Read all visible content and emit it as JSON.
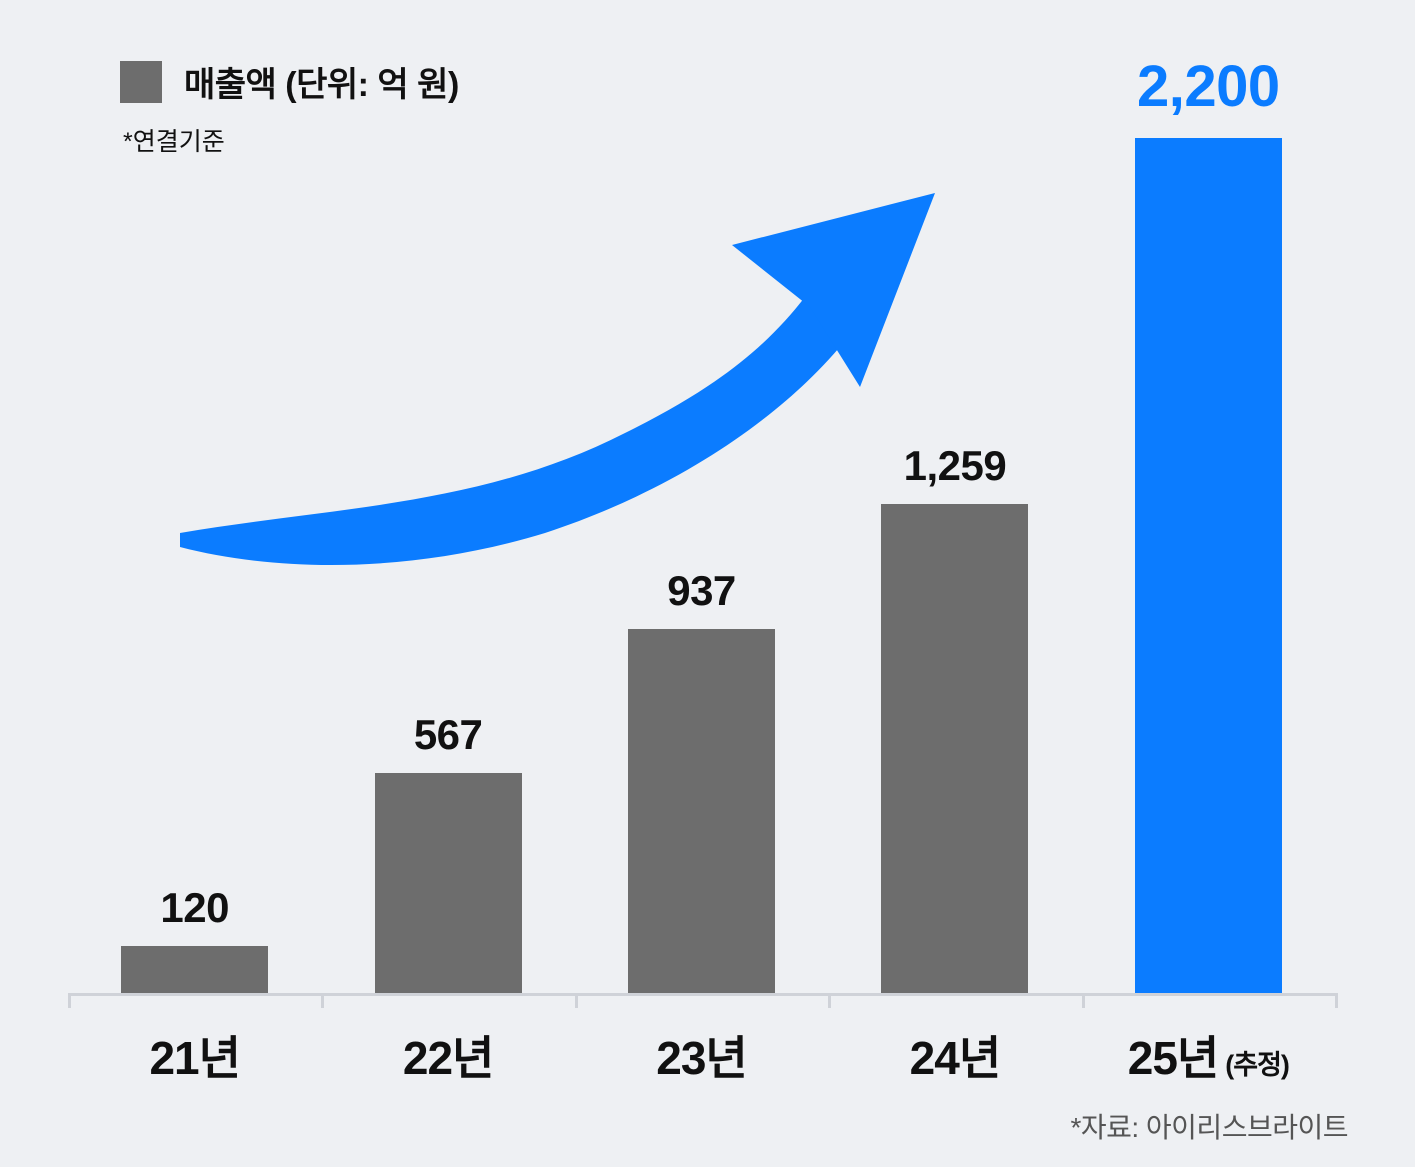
{
  "legend": {
    "label": "매출액 (단위: 억 원)",
    "note": "*연결기준"
  },
  "source": "*자료: 아이리스브라이트",
  "colors": {
    "bar": "#6d6d6d",
    "highlight": "#0b7cff",
    "bg": "#eef0f3",
    "axis": "#cfd2d8"
  },
  "chart_data": {
    "type": "bar",
    "title": "매출액 (단위: 억 원)",
    "subtitle_note": "*연결기준",
    "categories": [
      "21년",
      "22년",
      "23년",
      "24년",
      "25년"
    ],
    "category_suffixes": [
      "",
      "",
      "",
      "",
      "(추정)"
    ],
    "values": [
      120,
      567,
      937,
      1259,
      2200
    ],
    "value_labels": [
      "120",
      "567",
      "937",
      "1,259",
      "2,200"
    ],
    "highlight_index": 4,
    "unit": "억 원",
    "ylim": [
      0,
      2200
    ],
    "grid": false,
    "legend_position": "top-left",
    "annotation": "growth-arrow",
    "source": "*자료: 아이리스브라이트"
  }
}
